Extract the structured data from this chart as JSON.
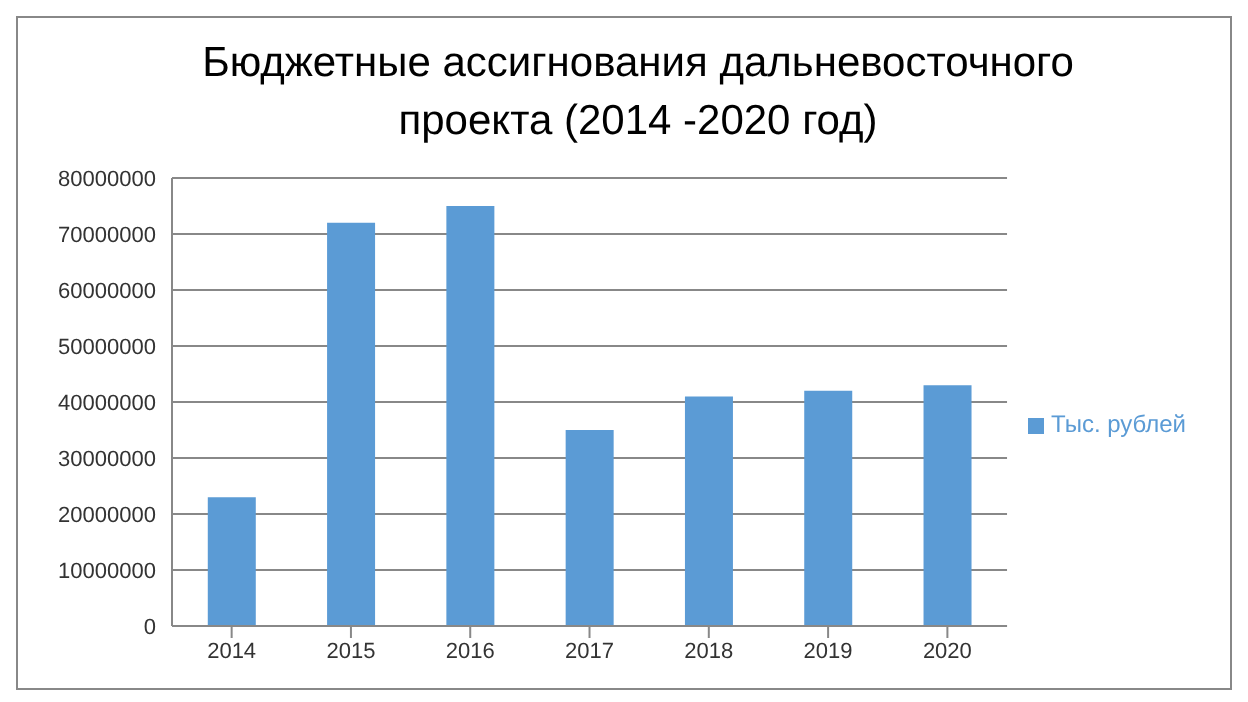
{
  "chart_data": {
    "type": "bar",
    "title": "Бюджетные ассигнования дальневосточного проекта (2014 -2020 год)",
    "categories": [
      "2014",
      "2015",
      "2016",
      "2017",
      "2018",
      "2019",
      "2020"
    ],
    "series": [
      {
        "name": "Тыс. рублей",
        "color": "#5b9bd5",
        "values": [
          23000000,
          72000000,
          75000000,
          35000000,
          41000000,
          42000000,
          43000000
        ]
      }
    ],
    "ylim": [
      0,
      80000000
    ],
    "yticks": [
      0,
      10000000,
      20000000,
      30000000,
      40000000,
      50000000,
      60000000,
      70000000,
      80000000
    ],
    "grid": "y",
    "legend": "right"
  }
}
